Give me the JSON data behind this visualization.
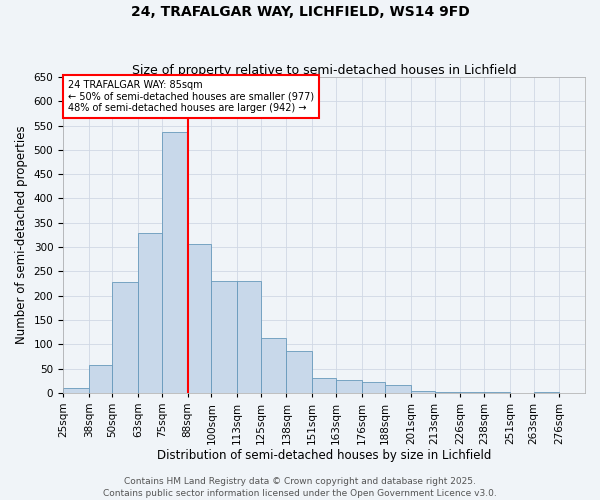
{
  "title": "24, TRAFALGAR WAY, LICHFIELD, WS14 9FD",
  "subtitle": "Size of property relative to semi-detached houses in Lichfield",
  "xlabel": "Distribution of semi-detached houses by size in Lichfield",
  "ylabel": "Number of semi-detached properties",
  "bin_labels": [
    "25sqm",
    "38sqm",
    "50sqm",
    "63sqm",
    "75sqm",
    "88sqm",
    "100sqm",
    "113sqm",
    "125sqm",
    "138sqm",
    "151sqm",
    "163sqm",
    "176sqm",
    "188sqm",
    "201sqm",
    "213sqm",
    "226sqm",
    "238sqm",
    "251sqm",
    "263sqm",
    "276sqm"
  ],
  "bin_edges": [
    25,
    38,
    50,
    63,
    75,
    88,
    100,
    113,
    125,
    138,
    151,
    163,
    176,
    188,
    201,
    213,
    226,
    238,
    251,
    263,
    276,
    289
  ],
  "bar_heights": [
    10,
    58,
    228,
    328,
    537,
    307,
    230,
    230,
    113,
    87,
    30,
    27,
    22,
    16,
    4,
    2,
    2,
    1,
    0,
    2,
    0
  ],
  "bar_color": "#c8d8ea",
  "bar_edge_color": "#6699bb",
  "vline_x": 88,
  "vline_color": "red",
  "annotation_title": "24 TRAFALGAR WAY: 85sqm",
  "annotation_line1": "← 50% of semi-detached houses are smaller (977)",
  "annotation_line2": "48% of semi-detached houses are larger (942) →",
  "annotation_box_color": "white",
  "annotation_box_edge": "red",
  "ylim": [
    0,
    650
  ],
  "yticks": [
    0,
    50,
    100,
    150,
    200,
    250,
    300,
    350,
    400,
    450,
    500,
    550,
    600,
    650
  ],
  "footer1": "Contains HM Land Registry data © Crown copyright and database right 2025.",
  "footer2": "Contains public sector information licensed under the Open Government Licence v3.0.",
  "bg_color": "#f0f4f8",
  "grid_color": "#d0d8e4",
  "title_fontsize": 10,
  "subtitle_fontsize": 9,
  "axis_label_fontsize": 8.5,
  "tick_fontsize": 7.5,
  "footer_fontsize": 6.5
}
